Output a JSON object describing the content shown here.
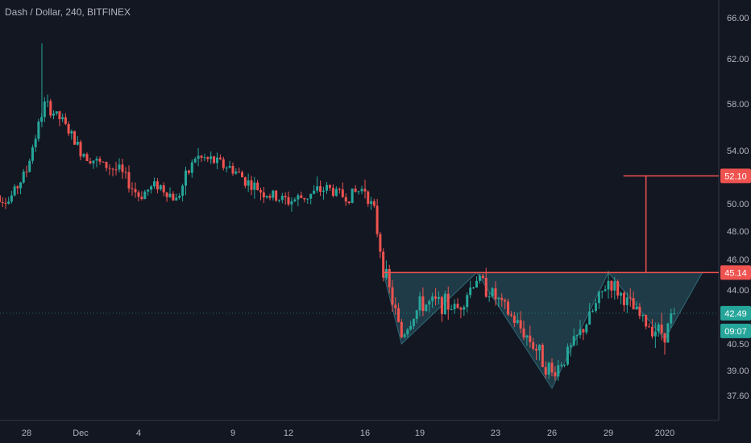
{
  "header": {
    "symbol_title": "Dash / Dollar, 240, BITFINEX"
  },
  "colors": {
    "background": "#131722",
    "up": "#26a69a",
    "down": "#ef5350",
    "pattern_fill": "#2a5a66",
    "pattern_stroke": "#2f6b78",
    "target_line": "#ef5350",
    "axis_text": "#b2b5be",
    "axis_line": "#363a45"
  },
  "price_axis": {
    "labels": [
      "66.00",
      "62.00",
      "58.00",
      "54.00",
      "50.00",
      "48.00",
      "46.00",
      "44.00",
      "40.50",
      "39.00",
      "37.60"
    ],
    "tags": [
      {
        "text": "52.10",
        "kind": "target"
      },
      {
        "text": "45.14",
        "kind": "neckline"
      },
      {
        "text": "42.49",
        "kind": "last-price"
      },
      {
        "text": "09:07",
        "kind": "countdown"
      }
    ]
  },
  "time_axis": {
    "labels": [
      "28",
      "Dec",
      "4",
      "9",
      "12",
      "16",
      "19",
      "23",
      "26",
      "29",
      "2020"
    ]
  },
  "chart_data": {
    "type": "candlestick",
    "title": "Dash / Dollar, 240, BITFINEX",
    "ylim": [
      36.5,
      67
    ],
    "xlim": [
      "Nov 26",
      "Jan 4"
    ],
    "y_tick_labels": [
      "66.00",
      "62.00",
      "58.00",
      "54.00",
      "50.00",
      "48.00",
      "46.00",
      "44.00",
      "40.50",
      "39.00",
      "37.60"
    ],
    "x_tick_labels": [
      "28",
      "Dec",
      "4",
      "9",
      "12",
      "16",
      "19",
      "23",
      "26",
      "29",
      "2020"
    ],
    "last_price": 42.49,
    "countdown": "09:07",
    "annotations": {
      "neckline_price": 45.14,
      "target_price": 52.1,
      "pattern": "inverse head and shoulders",
      "pattern_points": [
        {
          "date": "Dec 17",
          "price": 45.0
        },
        {
          "date": "Dec 18",
          "price": 40.5
        },
        {
          "date": "Dec 22",
          "price": 45.1
        },
        {
          "date": "Dec 26",
          "price": 38.0
        },
        {
          "date": "Dec 29",
          "price": 45.1
        },
        {
          "date": "Jan 1",
          "price": 40.8
        },
        {
          "date": "Jan 3",
          "price": 45.14
        }
      ]
    },
    "price_path": [
      {
        "date": "Nov 26",
        "price": 51.0
      },
      {
        "date": "Nov 27",
        "price": 50.2
      },
      {
        "date": "Nov 28",
        "price": 52.5
      },
      {
        "date": "Nov 29",
        "price": 58.0
      },
      {
        "date": "Nov 30",
        "price": 56.5
      },
      {
        "date": "Dec 1",
        "price": 54.0
      },
      {
        "date": "Dec 2",
        "price": 53.0
      },
      {
        "date": "Dec 3",
        "price": 52.5
      },
      {
        "date": "Dec 4",
        "price": 50.6
      },
      {
        "date": "Dec 5",
        "price": 51.5
      },
      {
        "date": "Dec 6",
        "price": 50.3
      },
      {
        "date": "Dec 7",
        "price": 53.5
      },
      {
        "date": "Dec 8",
        "price": 53.2
      },
      {
        "date": "Dec 9",
        "price": 52.6
      },
      {
        "date": "Dec 10",
        "price": 51.4
      },
      {
        "date": "Dec 11",
        "price": 50.6
      },
      {
        "date": "Dec 12",
        "price": 50.2
      },
      {
        "date": "Dec 13",
        "price": 50.6
      },
      {
        "date": "Dec 14",
        "price": 51.2
      },
      {
        "date": "Dec 15",
        "price": 50.5
      },
      {
        "date": "Dec 16",
        "price": 51.2
      },
      {
        "date": "Dec 16.5",
        "price": 49.3
      },
      {
        "date": "Dec 17",
        "price": 45.5
      },
      {
        "date": "Dec 18",
        "price": 41.0
      },
      {
        "date": "Dec 19",
        "price": 43.0
      },
      {
        "date": "Dec 20",
        "price": 43.2
      },
      {
        "date": "Dec 21",
        "price": 42.8
      },
      {
        "date": "Dec 22",
        "price": 44.8
      },
      {
        "date": "Dec 23",
        "price": 43.5
      },
      {
        "date": "Dec 24",
        "price": 42.0
      },
      {
        "date": "Dec 25",
        "price": 40.5
      },
      {
        "date": "Dec 26",
        "price": 38.8
      },
      {
        "date": "Dec 27",
        "price": 40.2
      },
      {
        "date": "Dec 28",
        "price": 42.2
      },
      {
        "date": "Dec 29",
        "price": 44.6
      },
      {
        "date": "Dec 30",
        "price": 43.2
      },
      {
        "date": "Dec 31",
        "price": 41.8
      },
      {
        "date": "Jan 1",
        "price": 41.2
      },
      {
        "date": "Jan 1.5",
        "price": 42.49
      }
    ]
  }
}
